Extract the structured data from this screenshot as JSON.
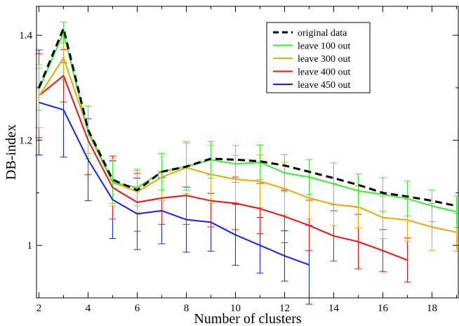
{
  "chart_data": {
    "type": "line",
    "title": "",
    "xlabel": "Number of clusters",
    "ylabel": "DB-index",
    "xlim": [
      1.9,
      19.1
    ],
    "ylim": [
      0.9,
      1.455
    ],
    "xticks": [
      2,
      4,
      6,
      8,
      10,
      12,
      14,
      16,
      18
    ],
    "xtick_labels": [
      "2",
      "4",
      "6",
      "8",
      "10",
      "12",
      "14",
      "16",
      "18"
    ],
    "yticks": [
      1.0,
      1.2,
      1.4
    ],
    "ytick_labels": [
      "1",
      "1.2",
      "1.4"
    ],
    "legend_position": "top-right",
    "series": [
      {
        "name": "original data",
        "color": "#000000",
        "dashed": true,
        "x": [
          2,
          3,
          4,
          5,
          6,
          7,
          8,
          9,
          10,
          11,
          12,
          13,
          14,
          15,
          16,
          17,
          18,
          19
        ],
        "values": [
          1.3,
          1.413,
          1.22,
          1.125,
          1.105,
          1.14,
          1.15,
          1.165,
          1.163,
          1.16,
          1.152,
          1.14,
          1.128,
          1.115,
          1.1,
          1.093,
          1.085,
          1.075
        ]
      },
      {
        "name": "leave 100 out",
        "color": "#33ee33",
        "dashed": false,
        "x": [
          2,
          3,
          4,
          5,
          6,
          7,
          8,
          9,
          10,
          11,
          12,
          13,
          14,
          15,
          16,
          17,
          18,
          19
        ],
        "values": [
          1.297,
          1.405,
          1.215,
          1.12,
          1.11,
          1.14,
          1.15,
          1.163,
          1.155,
          1.158,
          1.138,
          1.13,
          1.117,
          1.104,
          1.097,
          1.089,
          1.075,
          1.064
        ],
        "errors": [
          0.04,
          0.02,
          0.05,
          0.04,
          0.035,
          0.035,
          0.045,
          0.035,
          0.035,
          0.033,
          0.035,
          0.033,
          0.04,
          0.032,
          0.032,
          0.033,
          0.03,
          0.03
        ]
      },
      {
        "name": "leave 300 out",
        "color": "#f0a800",
        "dashed": false,
        "x": [
          2,
          3,
          4,
          5,
          6,
          7,
          8,
          9,
          10,
          11,
          12,
          13,
          14,
          15,
          16,
          17,
          18,
          19
        ],
        "values": [
          1.284,
          1.357,
          1.22,
          1.12,
          1.102,
          1.13,
          1.148,
          1.135,
          1.126,
          1.122,
          1.108,
          1.09,
          1.078,
          1.073,
          1.053,
          1.048,
          1.035,
          1.025
        ],
        "errors": [
          0.06,
          0.04,
          0.045,
          0.045,
          0.04,
          0.045,
          0.05,
          0.055,
          0.045,
          0.05,
          0.05,
          0.04,
          0.04,
          0.04,
          0.04,
          0.04,
          0.045,
          0.036
        ]
      },
      {
        "name": "leave 400 out",
        "color": "#ee1111",
        "dashed": false,
        "x": [
          2,
          3,
          4,
          5,
          6,
          7,
          8,
          9,
          10,
          11,
          12,
          13,
          14,
          15,
          16,
          17
        ],
        "values": [
          1.285,
          1.323,
          1.2,
          1.11,
          1.082,
          1.09,
          1.095,
          1.085,
          1.08,
          1.07,
          1.055,
          1.038,
          1.018,
          1.007,
          0.99,
          0.972
        ],
        "errors": [
          0.08,
          0.05,
          0.065,
          0.06,
          0.055,
          0.05,
          0.055,
          0.05,
          0.05,
          0.048,
          0.05,
          0.048,
          0.048,
          0.052,
          0.04,
          0.042
        ]
      },
      {
        "name": "leave 450 out",
        "color": "#1122ee",
        "dashed": false,
        "x": [
          2,
          3,
          4,
          5,
          6,
          7,
          8,
          9,
          10,
          11,
          12,
          13
        ],
        "values": [
          1.272,
          1.258,
          1.163,
          1.087,
          1.06,
          1.066,
          1.049,
          1.044,
          1.02,
          1.0,
          0.98,
          0.963
        ],
        "errors": [
          0.1,
          0.09,
          0.078,
          0.074,
          0.068,
          0.063,
          0.062,
          0.055,
          0.058,
          0.053,
          0.048,
          0.075
        ]
      }
    ]
  }
}
